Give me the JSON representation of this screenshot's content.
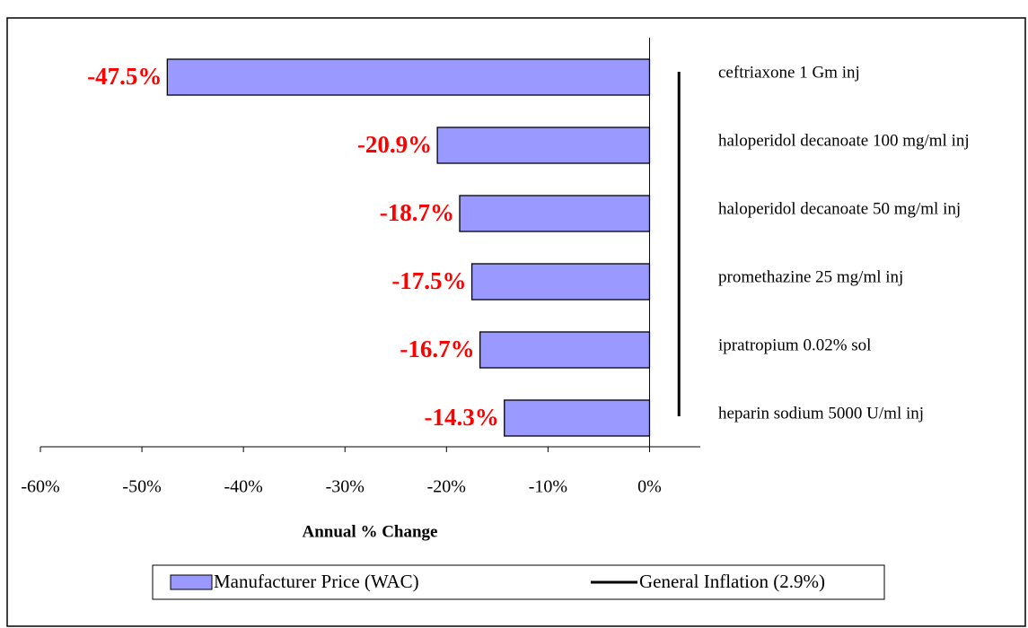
{
  "chart_data": {
    "type": "barh",
    "categories": [
      "ceftriaxone 1 Gm inj",
      "haloperidol decanoate 100 mg/ml inj",
      "haloperidol decanoate 50 mg/ml inj",
      "promethazine 25 mg/ml inj",
      "ipratropium 0.02% sol",
      "heparin sodium 5000 U/ml inj"
    ],
    "series": [
      {
        "name": "Manufacturer Price (WAC)",
        "color": "#9999ff",
        "values": [
          -47.5,
          -20.9,
          -18.7,
          -17.5,
          -16.7,
          -14.3
        ],
        "value_labels": [
          "-47.5%",
          "-20.9%",
          "-18.7%",
          "-17.5%",
          "-16.7%",
          "-14.3%"
        ]
      }
    ],
    "reference_line": {
      "name": "General Inflation (2.9%)",
      "color": "#000000",
      "value": 2.9
    },
    "x_label": "Annual % Change",
    "xlim": [
      -60,
      5
    ],
    "xticks": [
      {
        "value": -60,
        "label": "-60%"
      },
      {
        "value": -50,
        "label": "-50%"
      },
      {
        "value": -40,
        "label": "-40%"
      },
      {
        "value": -30,
        "label": "-30%"
      },
      {
        "value": -20,
        "label": "-20%"
      },
      {
        "value": -10,
        "label": "-10%"
      },
      {
        "value": 0,
        "label": "0%"
      }
    ],
    "legend": "bottom"
  }
}
